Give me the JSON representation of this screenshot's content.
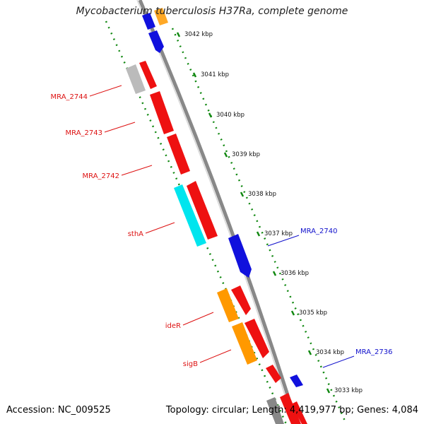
{
  "title": "Mycobacterium tuberculosis H37Ra, complete genome",
  "footer": {
    "accession": "Accession: NC_009525",
    "topology": "Topology: circular; Length: 4,419,977 bp; Genes: 4,084"
  },
  "colors": {
    "forward_red": "#ee1111",
    "reverse_blue": "#1111dd",
    "orange": "#ff9900",
    "cyan": "#00e5ee",
    "gray": "#bbbbbb",
    "tick_green": "#118811",
    "backbone": "#888888",
    "label_red": "#dd1111",
    "label_blue": "#1111cc"
  },
  "ticks": [
    "3042 kbp",
    "3041 kbp",
    "3040 kbp",
    "3039 kbp",
    "3038 kbp",
    "3037 kbp",
    "3036 kbp",
    "3035 kbp",
    "3034 kbp",
    "3033 kbp"
  ],
  "gene_labels": [
    {
      "text": "MRA_2744",
      "strand": "forward"
    },
    {
      "text": "MRA_2743",
      "strand": "forward"
    },
    {
      "text": "MRA_2742",
      "strand": "forward"
    },
    {
      "text": "sthA",
      "strand": "forward"
    },
    {
      "text": "ideR",
      "strand": "forward"
    },
    {
      "text": "sigB",
      "strand": "forward"
    },
    {
      "text": "MRA_2740",
      "strand": "reverse"
    },
    {
      "text": "MRA_2736",
      "strand": "reverse"
    }
  ]
}
